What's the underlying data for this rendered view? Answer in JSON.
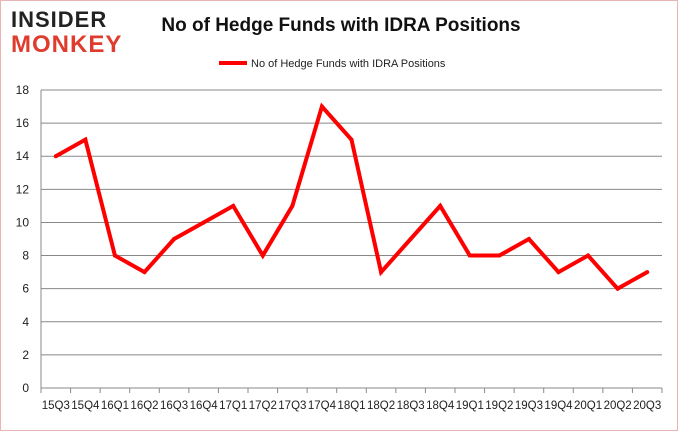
{
  "logo": {
    "line1": "INSIDER",
    "line2": "MONKEY"
  },
  "chart_data": {
    "type": "line",
    "title": "No of Hedge Funds with IDRA Positions",
    "xlabel": "",
    "ylabel": "",
    "categories": [
      "15Q3",
      "15Q4",
      "16Q1",
      "16Q2",
      "16Q3",
      "16Q4",
      "17Q1",
      "17Q2",
      "17Q3",
      "17Q4",
      "18Q1",
      "18Q2",
      "18Q3",
      "18Q4",
      "19Q1",
      "19Q2",
      "19Q3",
      "19Q4",
      "20Q1",
      "20Q2",
      "20Q3"
    ],
    "series": [
      {
        "name": "No of Hedge Funds with IDRA Positions",
        "values": [
          14,
          15,
          8,
          7,
          9,
          10,
          11,
          8,
          11,
          17,
          15,
          7,
          9,
          11,
          8,
          8,
          9,
          7,
          8,
          6,
          7
        ],
        "color": "#ff0000"
      }
    ],
    "ylim": [
      0,
      18
    ],
    "yticks": [
      0,
      2,
      4,
      6,
      8,
      10,
      12,
      14,
      16,
      18
    ],
    "grid": true,
    "legend": "top-center"
  }
}
